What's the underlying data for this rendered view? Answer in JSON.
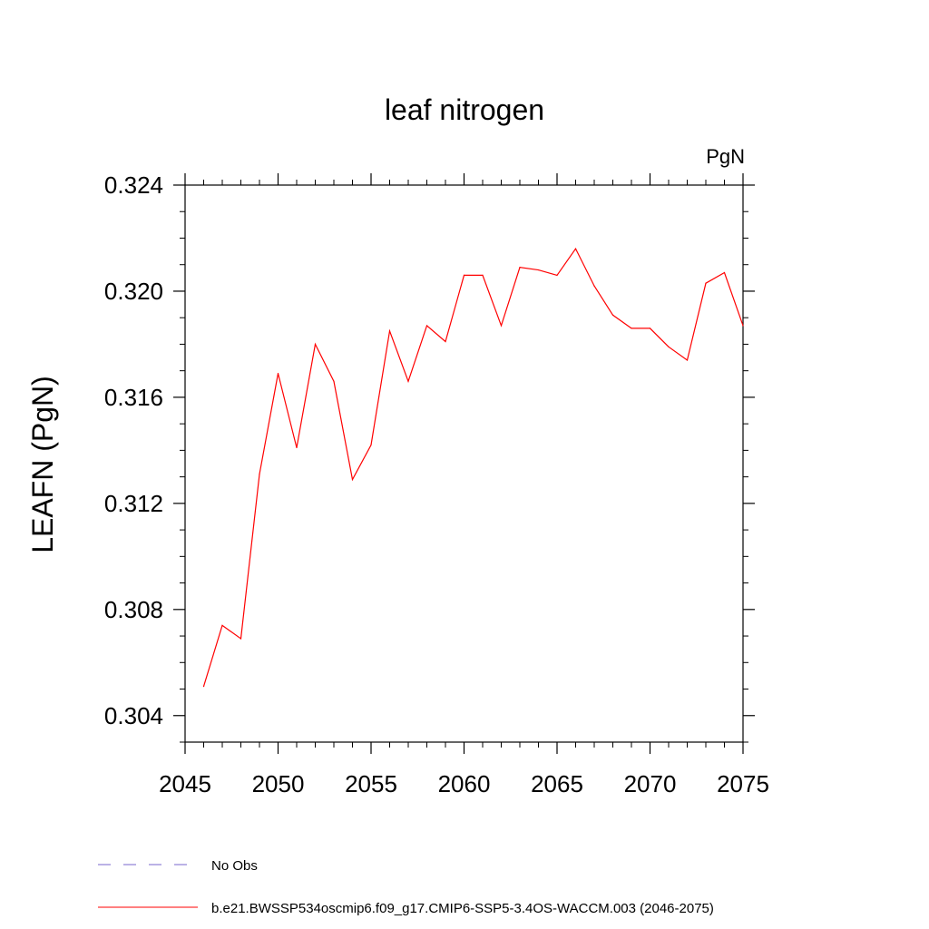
{
  "chart_data": {
    "type": "line",
    "title": "leaf nitrogen",
    "units_label": "PgN",
    "xlabel": "",
    "ylabel": "LEAFN  (PgN)",
    "xlim": [
      2045,
      2075
    ],
    "ylim": [
      0.303,
      0.324
    ],
    "x_ticks": [
      2045,
      2050,
      2055,
      2060,
      2065,
      2070,
      2075
    ],
    "x_tick_labels": [
      "2045",
      "2050",
      "2055",
      "2060",
      "2065",
      "2070",
      "2075"
    ],
    "y_ticks": [
      0.304,
      0.308,
      0.312,
      0.316,
      0.32,
      0.324
    ],
    "y_tick_labels": [
      "0.304",
      "0.308",
      "0.312",
      "0.316",
      "0.320",
      "0.324"
    ],
    "grid": false,
    "legend_placement": "bottom",
    "series": [
      {
        "name": "b.e21.BWSSP534oscmip6.f09_g17.CMIP6-SSP5-3.4OS-WACCM.003 (2046-2075)",
        "color": "#ff0000",
        "x": [
          2046,
          2047,
          2048,
          2049,
          2050,
          2051,
          2052,
          2053,
          2054,
          2055,
          2056,
          2057,
          2058,
          2059,
          2060,
          2061,
          2062,
          2063,
          2064,
          2065,
          2066,
          2067,
          2068,
          2069,
          2070,
          2071,
          2072,
          2073,
          2074,
          2075
        ],
        "y": [
          0.3051,
          0.3074,
          0.3069,
          0.3131,
          0.3169,
          0.3141,
          0.318,
          0.3166,
          0.3129,
          0.3142,
          0.3185,
          0.3166,
          0.3187,
          0.3181,
          0.3206,
          0.3206,
          0.3187,
          0.3209,
          0.3208,
          0.3206,
          0.3216,
          0.3202,
          0.3191,
          0.3186,
          0.3186,
          0.3179,
          0.3174,
          0.3203,
          0.3207,
          0.3187
        ]
      }
    ],
    "legend": [
      {
        "label": "No Obs",
        "color": "#7766cc",
        "style": "dashed"
      },
      {
        "label": "b.e21.BWSSP534oscmip6.f09_g17.CMIP6-SSP5-3.4OS-WACCM.003 (2046-2075)",
        "color": "#ff0000",
        "style": "solid"
      }
    ]
  }
}
